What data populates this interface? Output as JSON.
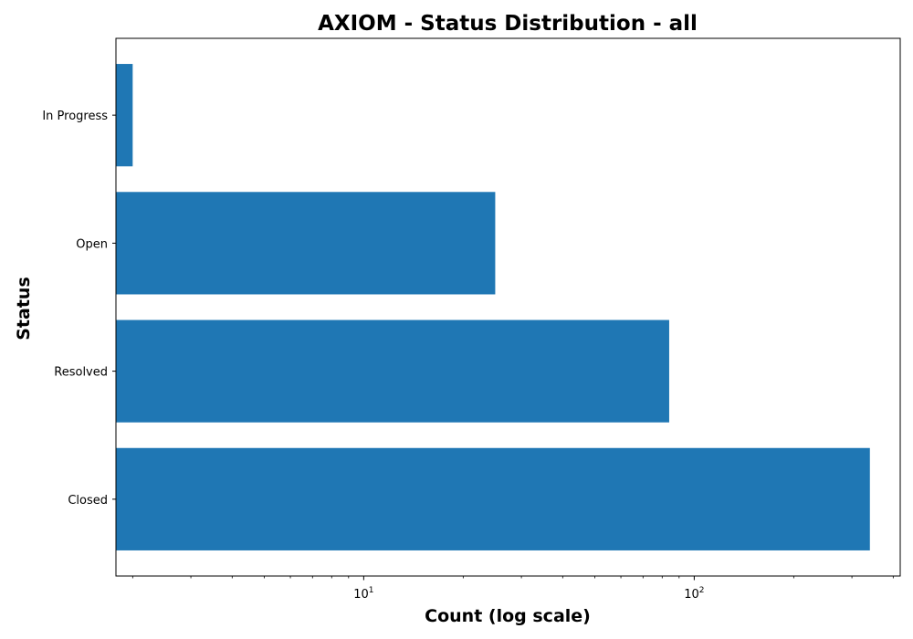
{
  "chart_data": {
    "type": "bar",
    "orientation": "horizontal",
    "title": "AXIOM - Status Distribution - all",
    "xlabel": "Count (log scale)",
    "ylabel": "Status",
    "xscale": "log",
    "xlim": [
      1.78,
      420
    ],
    "categories": [
      "In Progress",
      "Open",
      "Resolved",
      "Closed"
    ],
    "values": [
      2,
      25,
      84,
      340
    ],
    "major_ticks": [
      {
        "value": 10,
        "base": "10",
        "exp": "1"
      },
      {
        "value": 100,
        "base": "10",
        "exp": "2"
      }
    ],
    "grid": false,
    "bar_color": "#1f77b4"
  }
}
